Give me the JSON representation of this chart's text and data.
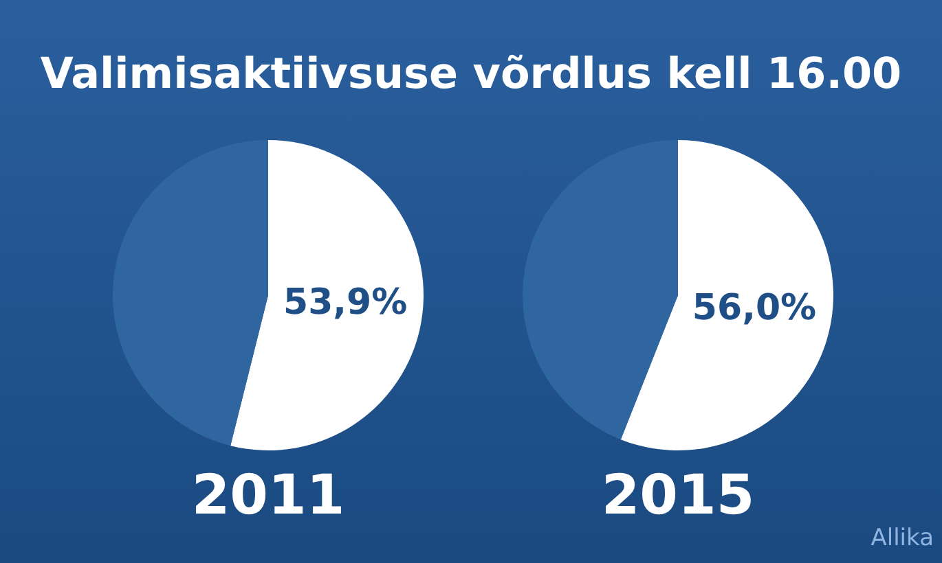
{
  "chart_data": [
    {
      "type": "pie",
      "title": "Valimisaktiivsuse võrdlus kell 16.00",
      "xlabel": "2011",
      "categories": [
        null,
        null
      ],
      "values": [
        53.9,
        46.1
      ],
      "colors": [
        "#ffffff",
        "#2f66a0"
      ],
      "value_labels": [
        "53,9%",
        null
      ],
      "legend": false
    },
    {
      "type": "pie",
      "xlabel": "2015",
      "categories": [
        null,
        null
      ],
      "values": [
        56.0,
        44.0
      ],
      "colors": [
        "#ffffff",
        "#2f66a0"
      ],
      "value_labels": [
        "56,0%",
        null
      ],
      "legend": false,
      "annotations": [
        "Allika"
      ]
    }
  ]
}
